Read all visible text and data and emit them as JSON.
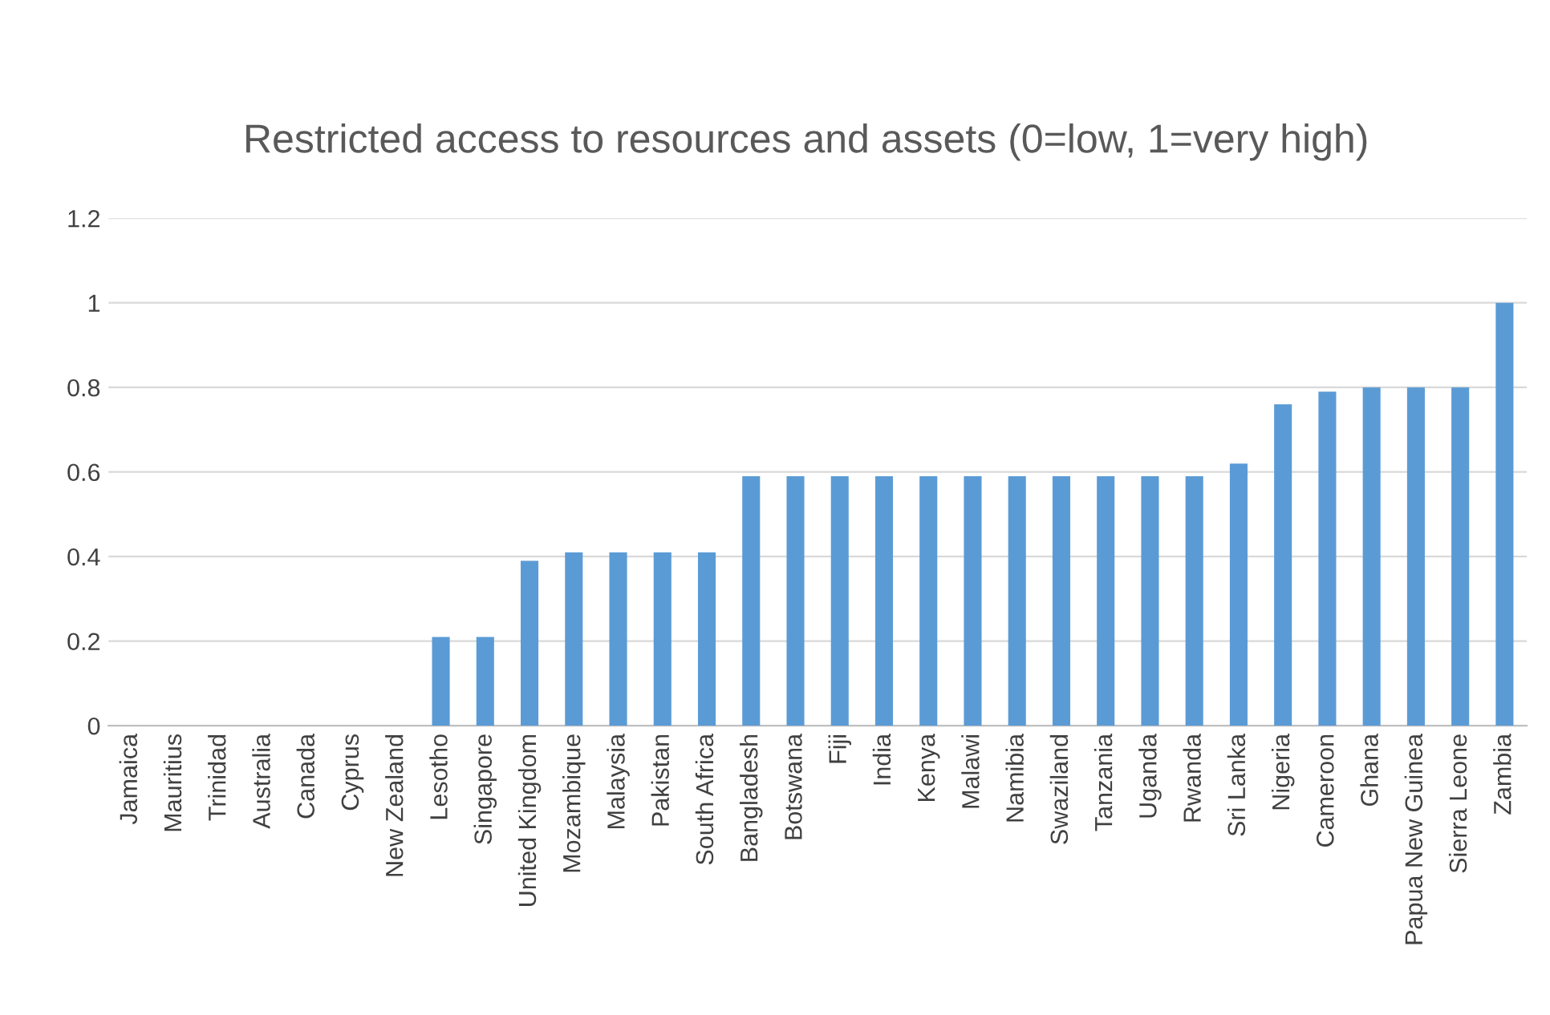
{
  "chart_data": {
    "type": "bar",
    "title": "Restricted access to resources and assets (0=low, 1=very high)",
    "categories": [
      "Jamaica",
      "Mauritius",
      "Trinidad",
      "Australia",
      "Canada",
      "Cyprus",
      "New Zealand",
      "Lesotho",
      "Singapore",
      "United Kingdom",
      "Mozambique",
      "Malaysia",
      "Pakistan",
      "South Africa",
      "Bangladesh",
      "Botswana",
      "Fiji",
      "India",
      "Kenya",
      "Malawi",
      "Namibia",
      "Swaziland",
      "Tanzania",
      "Uganda",
      "Rwanda",
      "Sri Lanka",
      "Nigeria",
      "Cameroon",
      "Ghana",
      "Papua New Guinea",
      "Sierra Leone",
      "Zambia"
    ],
    "values": [
      0,
      0,
      0,
      0,
      0,
      0,
      0,
      0.21,
      0.21,
      0.39,
      0.41,
      0.41,
      0.41,
      0.41,
      0.59,
      0.59,
      0.59,
      0.59,
      0.59,
      0.59,
      0.59,
      0.59,
      0.59,
      0.59,
      0.59,
      0.62,
      0.76,
      0.79,
      0.8,
      0.8,
      0.8,
      1.0
    ],
    "color": "#5b9bd5",
    "ylim": [
      0,
      1.2
    ],
    "yticks": [
      0,
      0.2,
      0.4,
      0.6,
      0.8,
      1,
      1.2
    ],
    "grid": "y",
    "legend": false
  }
}
